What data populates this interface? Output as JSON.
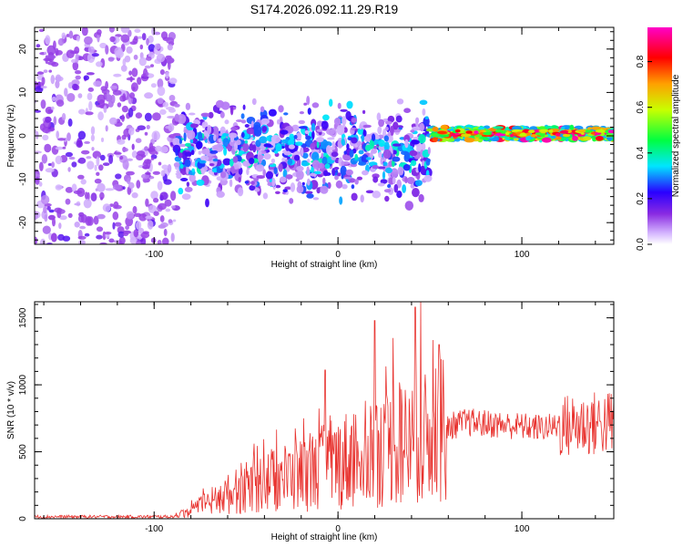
{
  "figure_title": "S174.2026.092.11.29.R19",
  "colors": {
    "snr_line": "#e8322e",
    "colormap": [
      "#ffffff",
      "#c48cff",
      "#8a2be2",
      "#2a00ff",
      "#00e5ff",
      "#00ff40",
      "#ffff00",
      "#ff8000",
      "#ff0000",
      "#ff00ff"
    ]
  },
  "chart_data": [
    {
      "type": "heatmap",
      "title": "S174.2026.092.11.29.R19",
      "xlabel": "Height of straight line (km)",
      "ylabel": "Frequency (Hz)",
      "xlim": [
        -165,
        150
      ],
      "ylim": [
        -25,
        25
      ],
      "xticks": [
        -100,
        0,
        100
      ],
      "yticks": [
        -20,
        -10,
        0,
        10,
        20
      ],
      "colorbar": {
        "label": "Normalized spectral amplitude",
        "range": [
          0,
          0.95
        ],
        "ticks": [
          0.0,
          0.2,
          0.4,
          0.6,
          0.8
        ]
      },
      "regions": [
        {
          "x": [
            -165,
            -88
          ],
          "f_center": 0,
          "f_spread": 25,
          "amp": [
            0.05,
            0.2
          ]
        },
        {
          "x": [
            -88,
            50
          ],
          "f_center": -4,
          "f_spread": 12,
          "amp": [
            0.05,
            0.35
          ]
        },
        {
          "x": [
            50,
            150
          ],
          "f_center": 0.5,
          "f_spread": 1.5,
          "amp": [
            0.3,
            0.95
          ]
        }
      ]
    },
    {
      "type": "line",
      "xlabel": "Height of straight line (km)",
      "ylabel": "SNR (10 * v/v)",
      "xlim": [
        -165,
        150
      ],
      "ylim": [
        0,
        1620
      ],
      "xticks": [
        -100,
        0,
        100
      ],
      "yticks": [
        0,
        500,
        1000,
        1500
      ],
      "series": [
        {
          "name": "SNR",
          "envelope_x": [
            -165,
            -90,
            -80,
            -60,
            -40,
            -20,
            0,
            20,
            40,
            50,
            60,
            70,
            90,
            110,
            130,
            150
          ],
          "envelope_mean": [
            15,
            15,
            60,
            180,
            280,
            330,
            420,
            520,
            560,
            600,
            690,
            720,
            700,
            680,
            700,
            720
          ],
          "peaks": [
            {
              "x": 20,
              "y": 1480
            },
            {
              "x": 30,
              "y": 1350
            },
            {
              "x": 42,
              "y": 1580
            },
            {
              "x": 45,
              "y": 1620
            },
            {
              "x": 55,
              "y": 1300
            },
            {
              "x": -7,
              "y": 1110
            }
          ]
        }
      ]
    }
  ]
}
